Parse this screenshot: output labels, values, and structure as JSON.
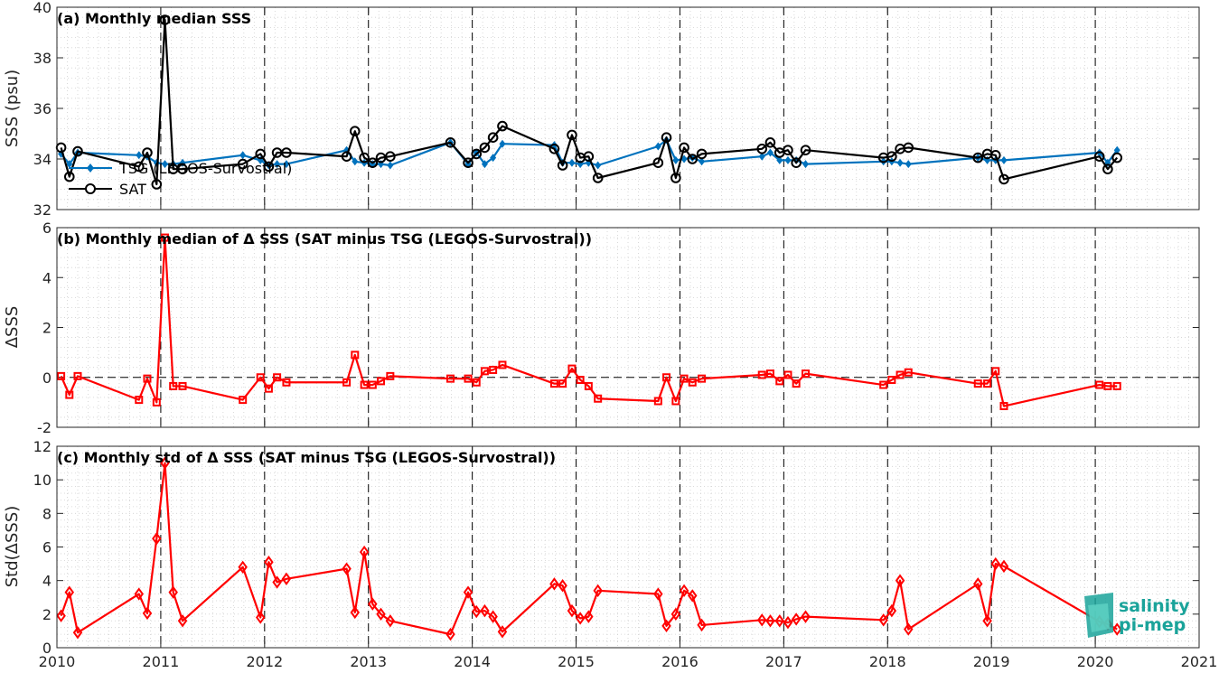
{
  "logo": {
    "line1": "salinity",
    "line2": "pi-mep"
  },
  "x_ticks": [
    "2010",
    "2011",
    "2012",
    "2013",
    "2014",
    "2015",
    "2016",
    "2017",
    "2018",
    "2019",
    "2020",
    "2021"
  ],
  "chart_data": [
    {
      "type": "line",
      "title": "(a) Monthly median SSS",
      "xlabel": "",
      "ylabel": "SSS (psu)",
      "xlim": [
        2010,
        2021
      ],
      "ylim": [
        32,
        40
      ],
      "yticks": [
        "32",
        "34",
        "36",
        "38",
        "40"
      ],
      "grid": true,
      "legend_position": "left",
      "series": [
        {
          "name": "TSG (LEGOS-Survostral)",
          "color": "#0072BD",
          "marker": "filled-diamond",
          "x": [
            2010.04,
            2010.12,
            2010.2,
            2010.79,
            2010.87,
            2010.96,
            2011.04,
            2011.12,
            2011.21,
            2011.79,
            2011.96,
            2012.04,
            2012.12,
            2012.21,
            2012.79,
            2012.87,
            2012.96,
            2013.04,
            2013.12,
            2013.21,
            2013.79,
            2013.96,
            2014.04,
            2014.12,
            2014.2,
            2014.29,
            2014.79,
            2014.87,
            2014.96,
            2015.04,
            2015.12,
            2015.21,
            2015.79,
            2015.87,
            2015.96,
            2016.04,
            2016.12,
            2016.21,
            2016.79,
            2016.87,
            2016.96,
            2017.04,
            2017.12,
            2017.21,
            2017.96,
            2018.04,
            2018.12,
            2018.2,
            2018.87,
            2018.96,
            2019.04,
            2019.12,
            2020.04,
            2020.12,
            2020.21
          ],
          "values": [
            34.2,
            33.8,
            34.25,
            34.15,
            34.1,
            33.85,
            33.8,
            33.8,
            33.85,
            34.15,
            33.95,
            33.75,
            33.8,
            33.8,
            34.35,
            33.9,
            33.85,
            33.8,
            33.8,
            33.75,
            34.65,
            33.8,
            34.25,
            33.8,
            34.05,
            34.6,
            34.55,
            33.85,
            33.85,
            33.8,
            33.85,
            33.75,
            34.5,
            34.75,
            33.95,
            34.0,
            34.05,
            33.9,
            34.1,
            34.25,
            33.95,
            33.95,
            33.95,
            33.8,
            33.9,
            33.9,
            33.85,
            33.8,
            34.05,
            33.95,
            33.95,
            33.95,
            34.25,
            33.85,
            34.35
          ]
        },
        {
          "name": "SAT",
          "color": "#000000",
          "marker": "open-circle",
          "x": [
            2010.04,
            2010.12,
            2010.2,
            2010.79,
            2010.87,
            2010.96,
            2011.04,
            2011.12,
            2011.21,
            2011.79,
            2011.96,
            2012.04,
            2012.12,
            2012.21,
            2012.79,
            2012.87,
            2012.96,
            2013.04,
            2013.12,
            2013.21,
            2013.79,
            2013.96,
            2014.04,
            2014.12,
            2014.2,
            2014.29,
            2014.79,
            2014.87,
            2014.96,
            2015.04,
            2015.12,
            2015.21,
            2015.79,
            2015.87,
            2015.96,
            2016.04,
            2016.12,
            2016.21,
            2016.79,
            2016.87,
            2016.96,
            2017.04,
            2017.12,
            2017.21,
            2017.96,
            2018.04,
            2018.12,
            2018.2,
            2018.87,
            2018.96,
            2019.04,
            2019.12,
            2020.04,
            2020.12,
            2020.21
          ],
          "values": [
            34.45,
            33.3,
            34.3,
            33.7,
            34.25,
            33.0,
            39.5,
            33.6,
            33.6,
            33.8,
            34.2,
            33.7,
            34.25,
            34.25,
            34.1,
            35.1,
            34.05,
            33.85,
            34.05,
            34.1,
            34.65,
            33.85,
            34.2,
            34.45,
            34.85,
            35.3,
            34.4,
            33.75,
            34.95,
            34.05,
            34.1,
            33.25,
            33.85,
            34.85,
            33.25,
            34.45,
            34.0,
            34.2,
            34.4,
            34.65,
            34.25,
            34.35,
            33.85,
            34.35,
            34.05,
            34.1,
            34.4,
            34.45,
            34.05,
            34.2,
            34.15,
            33.2,
            34.1,
            33.6,
            34.05
          ]
        }
      ]
    },
    {
      "type": "line",
      "title": "(b) Monthly median of Δ SSS (SAT minus TSG (LEGOS-Survostral))",
      "xlabel": "",
      "ylabel": "ΔSSS",
      "xlim": [
        2010,
        2021
      ],
      "ylim": [
        -2,
        6
      ],
      "yticks": [
        "-2",
        "0",
        "2",
        "4",
        "6"
      ],
      "grid": true,
      "series": [
        {
          "color": "#FF0000",
          "marker": "open-square",
          "x": [
            2010.04,
            2010.12,
            2010.2,
            2010.79,
            2010.87,
            2010.96,
            2011.04,
            2011.12,
            2011.21,
            2011.79,
            2011.96,
            2012.04,
            2012.12,
            2012.21,
            2012.79,
            2012.87,
            2012.96,
            2013.04,
            2013.12,
            2013.21,
            2013.79,
            2013.96,
            2014.04,
            2014.12,
            2014.2,
            2014.29,
            2014.79,
            2014.87,
            2014.96,
            2015.04,
            2015.12,
            2015.21,
            2015.79,
            2015.87,
            2015.96,
            2016.04,
            2016.12,
            2016.21,
            2016.79,
            2016.87,
            2016.96,
            2017.04,
            2017.12,
            2017.21,
            2017.96,
            2018.04,
            2018.12,
            2018.2,
            2018.87,
            2018.96,
            2019.04,
            2019.12,
            2020.04,
            2020.12,
            2020.21
          ],
          "values": [
            0.05,
            -0.7,
            0.05,
            -0.9,
            -0.05,
            -1.0,
            5.6,
            -0.35,
            -0.35,
            -0.9,
            0.0,
            -0.45,
            0.0,
            -0.2,
            -0.2,
            0.9,
            -0.3,
            -0.3,
            -0.15,
            0.05,
            -0.05,
            -0.05,
            -0.2,
            0.25,
            0.3,
            0.5,
            -0.25,
            -0.25,
            0.35,
            -0.1,
            -0.35,
            -0.85,
            -0.95,
            0.0,
            -0.95,
            -0.05,
            -0.2,
            -0.05,
            0.1,
            0.15,
            -0.15,
            0.1,
            -0.25,
            0.15,
            -0.3,
            -0.1,
            0.1,
            0.2,
            -0.25,
            -0.25,
            0.25,
            -1.15,
            -0.3,
            -0.35,
            -0.35
          ]
        }
      ]
    },
    {
      "type": "line",
      "title": "(c) Monthly std of Δ SSS (SAT minus TSG (LEGOS-Survostral))",
      "xlabel": "",
      "ylabel": "Std(ΔSSS)",
      "xlim": [
        2010,
        2021
      ],
      "ylim": [
        0,
        12
      ],
      "yticks": [
        "0",
        "2",
        "4",
        "6",
        "8",
        "10",
        "12"
      ],
      "grid": true,
      "series": [
        {
          "color": "#FF0000",
          "marker": "open-diamond",
          "x": [
            2010.04,
            2010.12,
            2010.2,
            2010.79,
            2010.87,
            2010.96,
            2011.04,
            2011.12,
            2011.21,
            2011.79,
            2011.96,
            2012.04,
            2012.12,
            2012.21,
            2012.79,
            2012.87,
            2012.96,
            2013.04,
            2013.12,
            2013.21,
            2013.79,
            2013.96,
            2014.04,
            2014.12,
            2014.2,
            2014.29,
            2014.79,
            2014.87,
            2014.96,
            2015.04,
            2015.12,
            2015.21,
            2015.79,
            2015.87,
            2015.96,
            2016.04,
            2016.12,
            2016.21,
            2016.79,
            2016.87,
            2016.96,
            2017.04,
            2017.12,
            2017.21,
            2017.96,
            2018.04,
            2018.12,
            2018.2,
            2018.87,
            2018.96,
            2019.04,
            2019.12,
            2020.04,
            2020.12,
            2020.21
          ],
          "values": [
            1.9,
            3.3,
            0.9,
            3.2,
            2.05,
            6.5,
            11.0,
            3.3,
            1.6,
            4.8,
            1.8,
            5.1,
            3.9,
            4.1,
            4.7,
            2.1,
            5.7,
            2.6,
            2.0,
            1.6,
            0.8,
            3.3,
            2.15,
            2.2,
            1.85,
            0.95,
            3.8,
            3.7,
            2.2,
            1.75,
            1.85,
            3.4,
            3.2,
            1.3,
            2.0,
            3.4,
            3.1,
            1.35,
            1.65,
            1.6,
            1.6,
            1.5,
            1.7,
            1.85,
            1.65,
            2.2,
            4.0,
            1.1,
            3.8,
            1.6,
            5.0,
            4.85,
            1.55,
            1.4,
            1.1
          ]
        }
      ]
    }
  ]
}
